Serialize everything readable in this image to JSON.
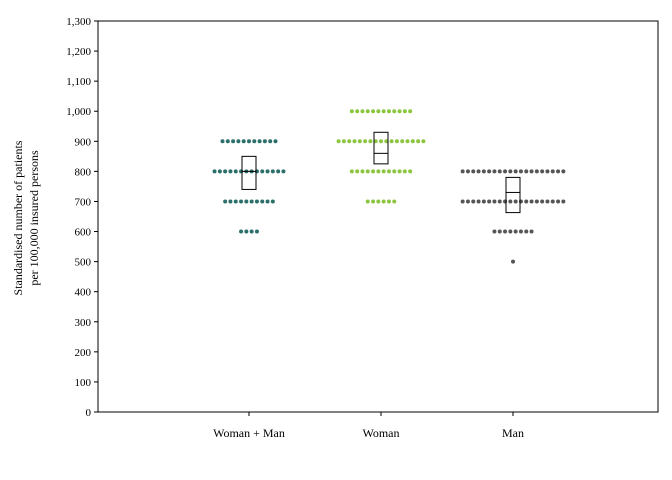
{
  "chart_data": {
    "type": "scatter",
    "ylabel_lines": [
      "Standardised number of patients",
      "per 100,000 insured persons"
    ],
    "ylim": [
      0,
      1300
    ],
    "yticks": [
      0,
      100,
      200,
      300,
      400,
      500,
      600,
      700,
      800,
      900,
      1000,
      1100,
      1200,
      1300
    ],
    "ytick_labels": [
      "0",
      "100",
      "200",
      "300",
      "400",
      "500",
      "600",
      "700",
      "800",
      "900",
      "1,000",
      "1,100",
      "1,200",
      "1,300"
    ],
    "grid": false,
    "categories": [
      "Woman + Man",
      "Woman",
      "Man"
    ],
    "series": [
      {
        "category": "Woman + Man",
        "color": "#2a6f6a",
        "dot_groups": [
          {
            "value": 900,
            "count": 11
          },
          {
            "value": 800,
            "count": 14
          },
          {
            "value": 700,
            "count": 10
          },
          {
            "value": 600,
            "count": 4
          }
        ],
        "box": {
          "q1": 740,
          "median": 800,
          "q3": 850
        }
      },
      {
        "category": "Woman",
        "color": "#8cc63f",
        "dot_groups": [
          {
            "value": 1000,
            "count": 12
          },
          {
            "value": 900,
            "count": 17
          },
          {
            "value": 800,
            "count": 12
          },
          {
            "value": 700,
            "count": 6
          }
        ],
        "box": {
          "q1": 825,
          "median": 860,
          "q3": 930
        }
      },
      {
        "category": "Man",
        "color": "#555555",
        "dot_groups": [
          {
            "value": 800,
            "count": 20
          },
          {
            "value": 700,
            "count": 20
          },
          {
            "value": 600,
            "count": 8
          },
          {
            "value": 500,
            "count": 1
          }
        ],
        "box": {
          "q1": 663,
          "median": 730,
          "q3": 780
        }
      }
    ]
  }
}
